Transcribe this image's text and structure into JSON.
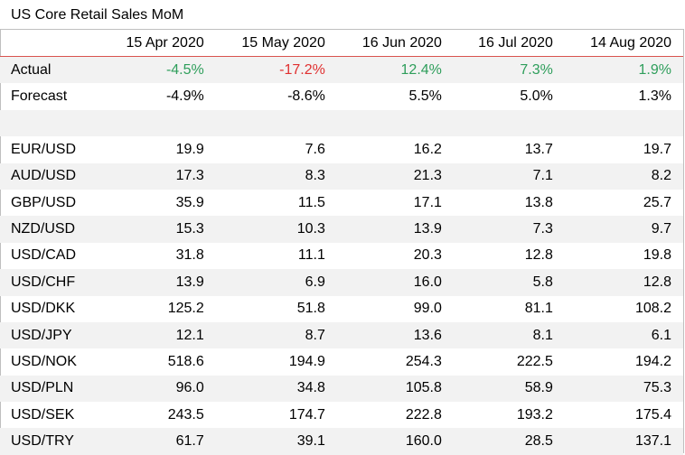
{
  "title": "US Core Retail Sales MoM",
  "columns": [
    "15 Apr 2020",
    "15 May 2020",
    "16 Jun 2020",
    "16 Jul 2020",
    "14 Aug 2020"
  ],
  "actual": {
    "label": "Actual",
    "values": [
      "-4.5%",
      "-17.2%",
      "12.4%",
      "7.3%",
      "1.9%"
    ],
    "sentiment": [
      "pos",
      "neg",
      "pos",
      "pos",
      "pos"
    ]
  },
  "forecast": {
    "label": "Forecast",
    "values": [
      "-4.9%",
      "-8.6%",
      "5.5%",
      "5.0%",
      "1.3%"
    ]
  },
  "colors": {
    "positive": "#2e9e5b",
    "negative": "#e03030",
    "header_rule": "#d9534f",
    "stripe": "#f2f2f2"
  },
  "pairs": [
    {
      "label": "EUR/USD",
      "values": [
        "19.9",
        "7.6",
        "16.2",
        "13.7",
        "19.7"
      ]
    },
    {
      "label": "AUD/USD",
      "values": [
        "17.3",
        "8.3",
        "21.3",
        "7.1",
        "8.2"
      ]
    },
    {
      "label": "GBP/USD",
      "values": [
        "35.9",
        "11.5",
        "17.1",
        "13.8",
        "25.7"
      ]
    },
    {
      "label": "NZD/USD",
      "values": [
        "15.3",
        "10.3",
        "13.9",
        "7.3",
        "9.7"
      ]
    },
    {
      "label": "USD/CAD",
      "values": [
        "31.8",
        "11.1",
        "20.3",
        "12.8",
        "19.8"
      ]
    },
    {
      "label": "USD/CHF",
      "values": [
        "13.9",
        "6.9",
        "16.0",
        "5.8",
        "12.8"
      ]
    },
    {
      "label": "USD/DKK",
      "values": [
        "125.2",
        "51.8",
        "99.0",
        "81.1",
        "108.2"
      ]
    },
    {
      "label": "USD/JPY",
      "values": [
        "12.1",
        "8.7",
        "13.6",
        "8.1",
        "6.1"
      ]
    },
    {
      "label": "USD/NOK",
      "values": [
        "518.6",
        "194.9",
        "254.3",
        "222.5",
        "194.2"
      ]
    },
    {
      "label": "USD/PLN",
      "values": [
        "96.0",
        "34.8",
        "105.8",
        "58.9",
        "75.3"
      ]
    },
    {
      "label": "USD/SEK",
      "values": [
        "243.5",
        "174.7",
        "222.8",
        "193.2",
        "175.4"
      ]
    },
    {
      "label": "USD/TRY",
      "values": [
        "61.7",
        "39.1",
        "160.0",
        "28.5",
        "137.1"
      ]
    }
  ]
}
